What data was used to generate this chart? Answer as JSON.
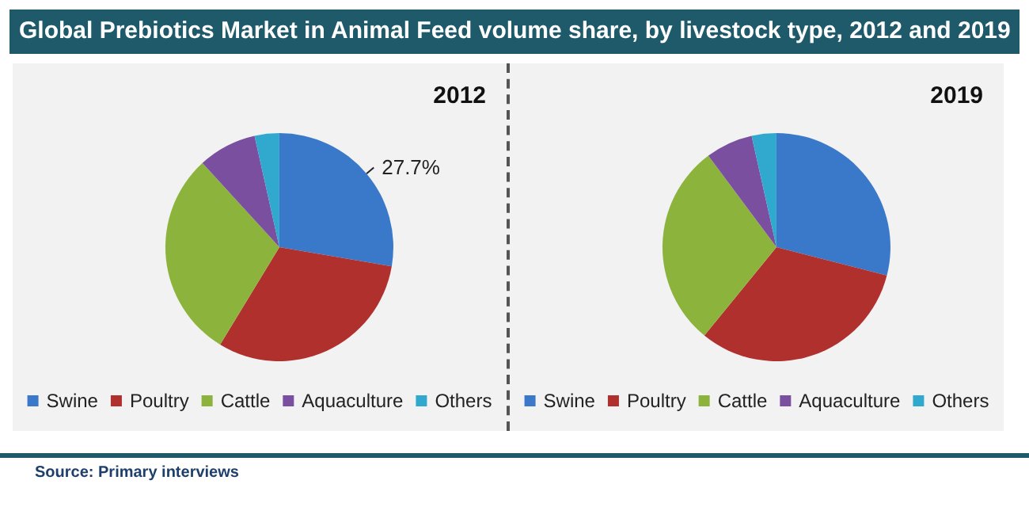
{
  "chart_data": [
    {
      "type": "pie",
      "title": "2012",
      "annotations": [
        "Global Prebiotics Market in Animal Feed volume share, by livestock type, 2012 and 2019"
      ],
      "categories": [
        "Swine",
        "Poultry",
        "Cattle",
        "Aquaculture",
        "Others"
      ],
      "values": [
        27.7,
        31.0,
        29.5,
        8.3,
        3.5
      ],
      "value_labels": [
        "27.7%",
        null,
        null,
        null,
        null
      ],
      "colors": [
        "#3a78c9",
        "#b0302e",
        "#8cb43c",
        "#7a4fa0",
        "#31a9cf"
      ],
      "legend": "bottom"
    },
    {
      "type": "pie",
      "title": "2019",
      "annotations": [
        "Source: Primary interviews"
      ],
      "categories": [
        "Swine",
        "Poultry",
        "Cattle",
        "Aquaculture",
        "Others"
      ],
      "values": [
        29.0,
        31.9,
        28.9,
        6.7,
        3.5
      ],
      "colors": [
        "#3a78c9",
        "#b0302e",
        "#8cb43c",
        "#7a4fa0",
        "#31a9cf"
      ],
      "legend": "bottom"
    }
  ]
}
